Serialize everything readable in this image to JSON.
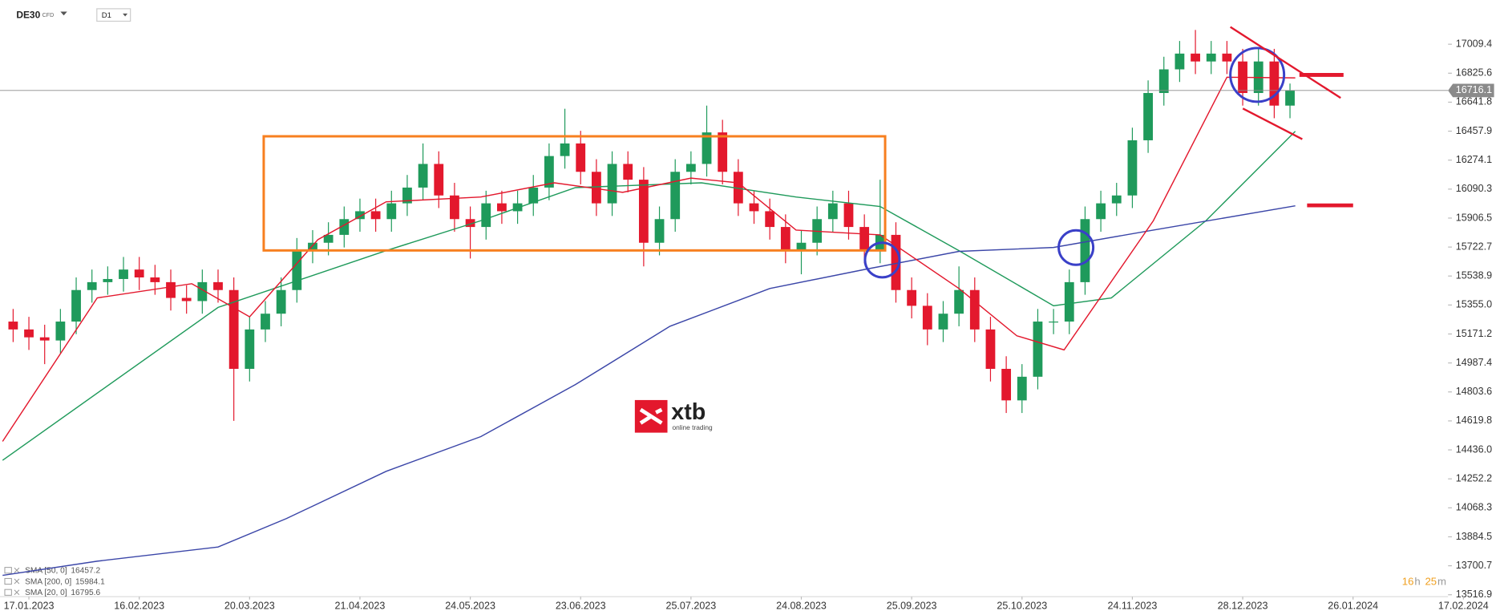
{
  "header": {
    "symbol": "DE30",
    "instrument_type": "CFD",
    "interval": "D1"
  },
  "logo": {
    "brand": "xtb",
    "tagline": "online trading"
  },
  "countdown": {
    "hours": 16,
    "hours_unit": "h",
    "minutes": 25,
    "minutes_unit": "m"
  },
  "chart_data": {
    "type": "candlestick",
    "up_color": "#1f9a5b",
    "down_color": "#e3182d",
    "x": [
      -3,
      0,
      3,
      6,
      9,
      12,
      15,
      18,
      21,
      24,
      27,
      30,
      33,
      36,
      39,
      42,
      45,
      48,
      51,
      54,
      57,
      60,
      63,
      66,
      69,
      72,
      75,
      78,
      81,
      84,
      87,
      90,
      93,
      96,
      99,
      102,
      105,
      108,
      111,
      114,
      117,
      120,
      123,
      126,
      129,
      132,
      135,
      138,
      141,
      144,
      147,
      150,
      153,
      156,
      159,
      162,
      165,
      168,
      171,
      174,
      177,
      180,
      183,
      186,
      189,
      192,
      195,
      198,
      201,
      204,
      207,
      210,
      213,
      216,
      219,
      222,
      225,
      228,
      231,
      234,
      237,
      240
    ],
    "open": [
      15250,
      15200,
      15150,
      15130,
      15250,
      15450,
      15500,
      15520,
      15580,
      15530,
      15500,
      15400,
      15380,
      15500,
      15450,
      14950,
      15200,
      15300,
      15450,
      15700,
      15750,
      15800,
      15900,
      15950,
      15900,
      16000,
      16100,
      16250,
      16050,
      15900,
      15850,
      16000,
      15950,
      16000,
      16100,
      16300,
      16380,
      16200,
      16000,
      16250,
      16150,
      15750,
      15900,
      16200,
      16250,
      16450,
      16200,
      16000,
      15950,
      15850,
      15700,
      15750,
      15900,
      16000,
      15850,
      15700,
      15800,
      15450,
      15350,
      15200,
      15300,
      15450,
      15200,
      14950,
      14750,
      14900,
      15250,
      15250,
      15500,
      15900,
      16000,
      16050,
      16400,
      16700,
      16850,
      16950,
      16900,
      16950,
      16900,
      16700,
      16900,
      16620
    ],
    "high": [
      15330,
      15280,
      15230,
      15330,
      15530,
      15580,
      15600,
      15660,
      15660,
      15610,
      15580,
      15480,
      15580,
      15580,
      15530,
      15280,
      15380,
      15530,
      15780,
      15830,
      15880,
      15980,
      16030,
      16030,
      16080,
      16180,
      16380,
      16330,
      16130,
      15980,
      16080,
      16080,
      16080,
      16180,
      16380,
      16600,
      16460,
      16280,
      16330,
      16330,
      16230,
      15980,
      16280,
      16330,
      16620,
      16530,
      16280,
      16080,
      16030,
      15930,
      15830,
      15980,
      16080,
      16080,
      15930,
      16150,
      15880,
      15530,
      15430,
      15380,
      15600,
      15530,
      15280,
      15030,
      14980,
      15330,
      15330,
      15580,
      15980,
      16080,
      16130,
      16480,
      16780,
      16930,
      17030,
      17100,
      17030,
      17030,
      16980,
      16980,
      16980,
      16760
    ],
    "low": [
      15120,
      15070,
      14980,
      15050,
      15170,
      15370,
      15420,
      15440,
      15450,
      15420,
      15320,
      15300,
      15300,
      15370,
      14620,
      14870,
      15120,
      15220,
      15370,
      15620,
      15670,
      15720,
      15820,
      15820,
      15820,
      15920,
      16020,
      15970,
      15820,
      15650,
      15770,
      15870,
      15870,
      15920,
      16020,
      16220,
      16120,
      15920,
      15920,
      16070,
      15600,
      15670,
      15820,
      16120,
      16170,
      16120,
      15920,
      15870,
      15770,
      15620,
      15550,
      15670,
      15820,
      15770,
      15620,
      15620,
      15370,
      15270,
      15100,
      15120,
      15220,
      15120,
      14870,
      14670,
      14670,
      14820,
      15170,
      15170,
      15420,
      15820,
      15920,
      15970,
      16320,
      16620,
      16770,
      16820,
      16820,
      16820,
      16620,
      16620,
      16540,
      16540
    ],
    "close": [
      15200,
      15150,
      15130,
      15250,
      15450,
      15500,
      15520,
      15580,
      15530,
      15500,
      15400,
      15380,
      15500,
      15450,
      14950,
      15200,
      15300,
      15450,
      15700,
      15750,
      15800,
      15900,
      15950,
      15900,
      16000,
      16100,
      16250,
      16050,
      15900,
      15850,
      16000,
      15950,
      16000,
      16100,
      16300,
      16380,
      16200,
      16000,
      16250,
      16150,
      15750,
      15900,
      16200,
      16250,
      16450,
      16200,
      16000,
      15950,
      15850,
      15700,
      15750,
      15900,
      16000,
      15850,
      15700,
      15800,
      15450,
      15350,
      15200,
      15300,
      15450,
      15200,
      14950,
      14750,
      14900,
      15250,
      15250,
      15500,
      15900,
      16000,
      16050,
      16400,
      16700,
      16850,
      16950,
      16900,
      16950,
      16900,
      16700,
      16900,
      16620,
      16716.1
    ],
    "current_price": 16716.1,
    "overlays": [
      {
        "name": "SMA [50, 0]",
        "last_value": 16457.2,
        "color": "#1f9a5b",
        "x": [
          -5,
          36,
          68,
          86,
          104,
          128,
          146,
          162,
          177,
          195,
          206,
          224,
          241
        ],
        "values": [
          14370,
          15340,
          15700,
          15890,
          16100,
          16130,
          16040,
          15980,
          15700,
          15350,
          15400,
          15890,
          16457.2
        ]
      },
      {
        "name": "SMA [200, 0]",
        "last_value": 15984.1,
        "color": "#3b46a8",
        "x": [
          -5,
          13,
          36,
          49,
          68,
          86,
          104,
          122,
          141,
          159,
          177,
          195,
          214,
          241
        ],
        "values": [
          13640,
          13730,
          13820,
          14000,
          14300,
          14520,
          14850,
          15220,
          15460,
          15580,
          15695,
          15720,
          15830,
          15984.1
        ]
      },
      {
        "name": "SMA [20, 0]",
        "last_value": 16795.6,
        "color": "#e3182d",
        "x": [
          -5,
          13,
          31,
          42,
          55,
          68,
          86,
          100,
          113,
          126,
          135,
          146,
          162,
          177,
          188,
          197,
          214,
          228,
          241
        ],
        "values": [
          14490,
          15400,
          15490,
          15280,
          15770,
          16010,
          16040,
          16130,
          16070,
          16160,
          16130,
          15830,
          15800,
          15460,
          15160,
          15070,
          15890,
          16800,
          16795.6
        ]
      }
    ],
    "xlim": [
      -5.5,
      273
    ],
    "ylim": [
      13486.5,
      17289.3
    ],
    "xticks": [
      {
        "value": 0,
        "label": "17.01.2023"
      },
      {
        "value": 21,
        "label": "16.02.2023"
      },
      {
        "value": 42,
        "label": "20.03.2023"
      },
      {
        "value": 63,
        "label": "21.04.2023"
      },
      {
        "value": 84,
        "label": "24.05.2023"
      },
      {
        "value": 105,
        "label": "23.06.2023"
      },
      {
        "value": 126,
        "label": "25.07.2023"
      },
      {
        "value": 147,
        "label": "24.08.2023"
      },
      {
        "value": 168,
        "label": "25.09.2023"
      },
      {
        "value": 189,
        "label": "25.10.2023"
      },
      {
        "value": 210,
        "label": "24.11.2023"
      },
      {
        "value": 231,
        "label": "28.12.2023"
      },
      {
        "value": 252,
        "label": "26.01.2024"
      },
      {
        "value": 273,
        "label": "17.02.2024"
      }
    ],
    "yticks": [
      17009.4,
      16825.6,
      16641.8,
      16457.9,
      16274.1,
      16090.3,
      15906.5,
      15722.7,
      15538.9,
      {
        "value": 15355,
        "label": "15355.0"
      },
      15171.2,
      14987.4,
      14803.6,
      14619.8,
      {
        "value": 14436,
        "label": "14436.0"
      },
      14252.2,
      14068.3,
      13884.5,
      13700.7,
      13516.9
    ],
    "grid": false
  }
}
